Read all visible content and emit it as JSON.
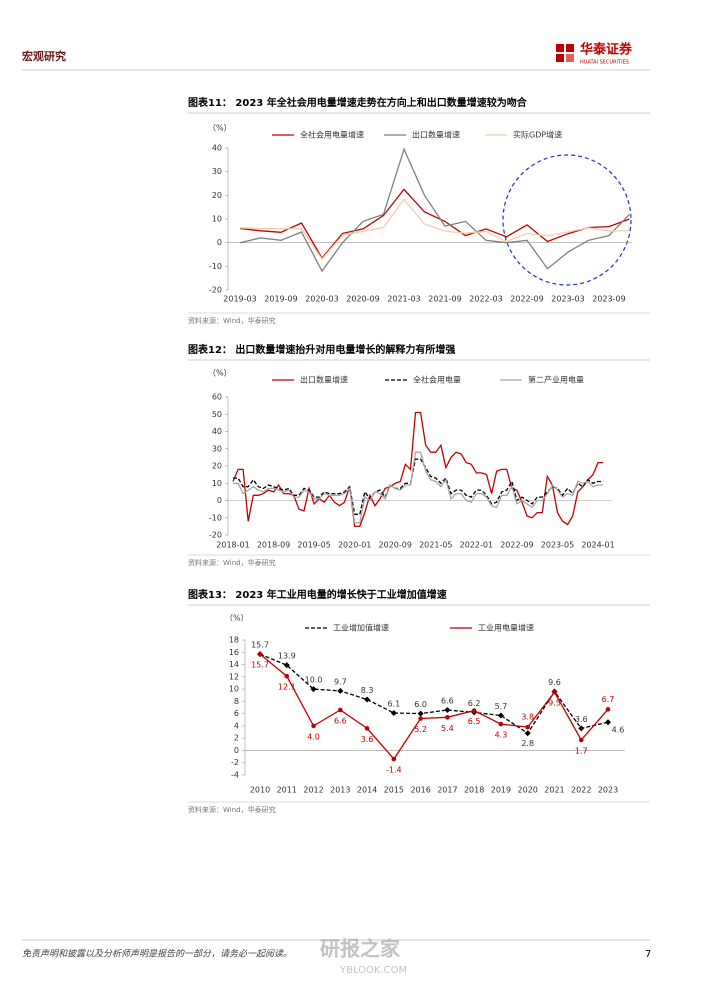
{
  "header": {
    "section": "宏观研究",
    "logo_cn": "华泰证券",
    "logo_en": "HUATAI SECURITIES"
  },
  "chart_data": [
    {
      "type": "line",
      "title": "图表11： 2023 年全社会用电量增速走势在方向上和出口数量增速较为吻合",
      "y_label": "（%）",
      "source": "资料来源：Wind，华泰研究",
      "categories": [
        "2019-03",
        null,
        "2019-09",
        null,
        "2020-03",
        null,
        "2020-09",
        null,
        "2021-03",
        null,
        "2021-09",
        null,
        "2022-03",
        null,
        "2022-09",
        null,
        "2023-03",
        null,
        "2023-09",
        null
      ],
      "series": [
        {
          "name": "全社会用电量增速",
          "color": "#c00000",
          "values": [
            6,
            5,
            4.4,
            8.3,
            -6.5,
            3.9,
            5.8,
            11.5,
            22.5,
            13,
            9,
            3,
            5.8,
            2.5,
            7.5,
            0.5,
            3.8,
            6.4,
            6.8,
            10
          ]
        },
        {
          "name": "出口数量增速",
          "color": "#808080",
          "values": [
            0,
            2,
            1,
            4.5,
            -12,
            0,
            9,
            12,
            39.5,
            20,
            7,
            9,
            1,
            0,
            1,
            -11,
            -4,
            1,
            3,
            12
          ]
        },
        {
          "name": "实际GDP增速",
          "color": "#f8cbad",
          "values": [
            6.3,
            6,
            5.9,
            5.8,
            -6.9,
            3.1,
            4.8,
            6.4,
            18.3,
            7.9,
            4.9,
            4,
            4.8,
            0.4,
            3.9,
            2.9,
            4.5,
            6.3,
            4.9,
            5.2
          ]
        }
      ],
      "ylim": [
        -20,
        40
      ],
      "yticks": [
        -20,
        -10,
        0,
        10,
        20,
        30,
        40
      ],
      "grid": false
    },
    {
      "type": "line",
      "title": "图表12： 出口数量增速抬升对用电量增长的解释力有所增强",
      "y_label": "（%）",
      "source": "资料来源：Wind，华泰研究",
      "categories": [
        "2018-01",
        null,
        null,
        null,
        null,
        null,
        null,
        null,
        "2018-09",
        null,
        null,
        null,
        null,
        null,
        null,
        null,
        "2019-05",
        null,
        null,
        null,
        null,
        null,
        null,
        null,
        "2020-01",
        null,
        null,
        null,
        null,
        null,
        null,
        null,
        "2020-09",
        null,
        null,
        null,
        null,
        null,
        null,
        null,
        "2021-05",
        null,
        null,
        null,
        null,
        null,
        null,
        null,
        "2022-01",
        null,
        null,
        null,
        null,
        null,
        null,
        null,
        "2022-09",
        null,
        null,
        null,
        null,
        null,
        null,
        null,
        "2023-05",
        null,
        null,
        null,
        null,
        null,
        null,
        null,
        "2024-01",
        null
      ],
      "series": [
        {
          "name": "出口数量增速",
          "color": "#c00000",
          "values": [
            11,
            18,
            18,
            -12,
            3,
            3,
            4,
            6,
            5,
            9,
            4,
            4,
            3,
            -5,
            -6,
            7,
            -2,
            1,
            -1,
            3,
            -1,
            -3,
            -1,
            8,
            -15,
            -15,
            -7,
            3,
            -3,
            1,
            7,
            8,
            10,
            11,
            21,
            18,
            51,
            51,
            32,
            28,
            28,
            32,
            19,
            25,
            28,
            27,
            22,
            21,
            16,
            16,
            15,
            4,
            17,
            18,
            18,
            7,
            6,
            -1,
            -9,
            -10,
            -7,
            -7,
            14,
            9,
            -7,
            -12,
            -14,
            -9,
            5,
            8,
            12,
            15,
            22,
            22
          ]
        },
        {
          "name": "全社会用电量",
          "color": "#000000",
          "line_style": "dashed",
          "values": [
            13,
            13,
            8,
            8,
            12,
            8,
            7,
            9,
            8,
            7,
            6,
            7,
            3,
            3,
            7,
            6,
            2,
            2,
            5,
            4,
            4,
            4,
            5,
            8,
            -8,
            -8,
            5,
            1,
            5,
            6,
            2,
            9,
            7,
            7,
            10,
            10,
            24,
            24,
            19,
            14,
            13,
            10,
            13,
            4,
            6,
            6,
            3,
            2,
            6,
            6,
            3,
            -2,
            -1,
            5,
            6,
            11,
            0,
            2,
            0,
            -2,
            2,
            2,
            5,
            8,
            7,
            3,
            7,
            4,
            10,
            8,
            12,
            10,
            11,
            11
          ]
        },
        {
          "name": "第二产业用电量",
          "color": "#a6a6a6",
          "values": [
            10,
            10,
            4,
            6,
            8,
            6,
            5,
            7,
            7,
            6,
            5,
            6,
            2,
            2,
            6,
            5,
            1,
            1,
            4,
            3,
            3,
            3,
            4,
            7,
            -13,
            -13,
            2,
            0,
            5,
            4,
            1,
            9,
            7,
            6,
            9,
            9,
            28,
            28,
            17,
            12,
            11,
            8,
            12,
            1,
            4,
            4,
            0,
            -1,
            4,
            4,
            2,
            -3,
            -4,
            3,
            3,
            8,
            -2,
            0,
            -2,
            -4,
            0,
            0,
            4,
            9,
            6,
            2,
            4,
            3,
            11,
            10,
            11,
            8,
            9,
            9
          ]
        }
      ],
      "ylim": [
        -20,
        60
      ],
      "yticks": [
        -20,
        -10,
        0,
        10,
        20,
        30,
        40,
        50,
        60
      ],
      "grid": false
    },
    {
      "type": "line",
      "title": "图表13： 2023 年工业用电量的增长快于工业增加值增速",
      "y_label": "（%）",
      "source": "资料来源：Wind，华泰研究",
      "categories": [
        "2010",
        "2011",
        "2012",
        "2013",
        "2014",
        "2015",
        "2016",
        "2017",
        "2018",
        "2019",
        "2020",
        "2021",
        "2022",
        "2023"
      ],
      "series": [
        {
          "name": "工业增加值增速",
          "color": "#000000",
          "line_style": "dashed",
          "marker": "diamond",
          "values": [
            15.7,
            13.9,
            10.0,
            9.7,
            8.3,
            6.1,
            6.0,
            6.6,
            6.2,
            5.7,
            2.8,
            9.6,
            3.6,
            4.6
          ],
          "value_labels": [
            "15.7",
            "13.9",
            "10.0",
            "9.7",
            "8.3",
            "6.1",
            "6.0",
            "6.6",
            "6.2",
            "5.7",
            "2.8",
            "9.6",
            "3.6",
            "4.6"
          ]
        },
        {
          "name": "工业用电量增速",
          "color": "#c00000",
          "marker": "circle",
          "values": [
            15.7,
            12.1,
            4.0,
            6.6,
            3.6,
            -1.4,
            5.2,
            5.4,
            6.5,
            4.3,
            3.8,
            9.5,
            1.7,
            6.7
          ],
          "value_labels": [
            "15.7",
            "12.1",
            "4.0",
            "6.6",
            "3.6",
            "-1.4",
            "5.2",
            "5.4",
            "6.5",
            "4.3",
            "3.8",
            "9.5",
            "1.7",
            "6.7"
          ]
        }
      ],
      "ylim": [
        -4,
        18
      ],
      "yticks": [
        -4,
        -2,
        0,
        2,
        4,
        6,
        8,
        10,
        12,
        14,
        16,
        18
      ],
      "grid": false
    }
  ],
  "footer": {
    "disclaimer": "免责声明和披露以及分析师声明是报告的一部分，请务必一起阅读。",
    "page": "7",
    "watermark_cn": "研报之家",
    "watermark_en": "YBLOOK.COM"
  }
}
